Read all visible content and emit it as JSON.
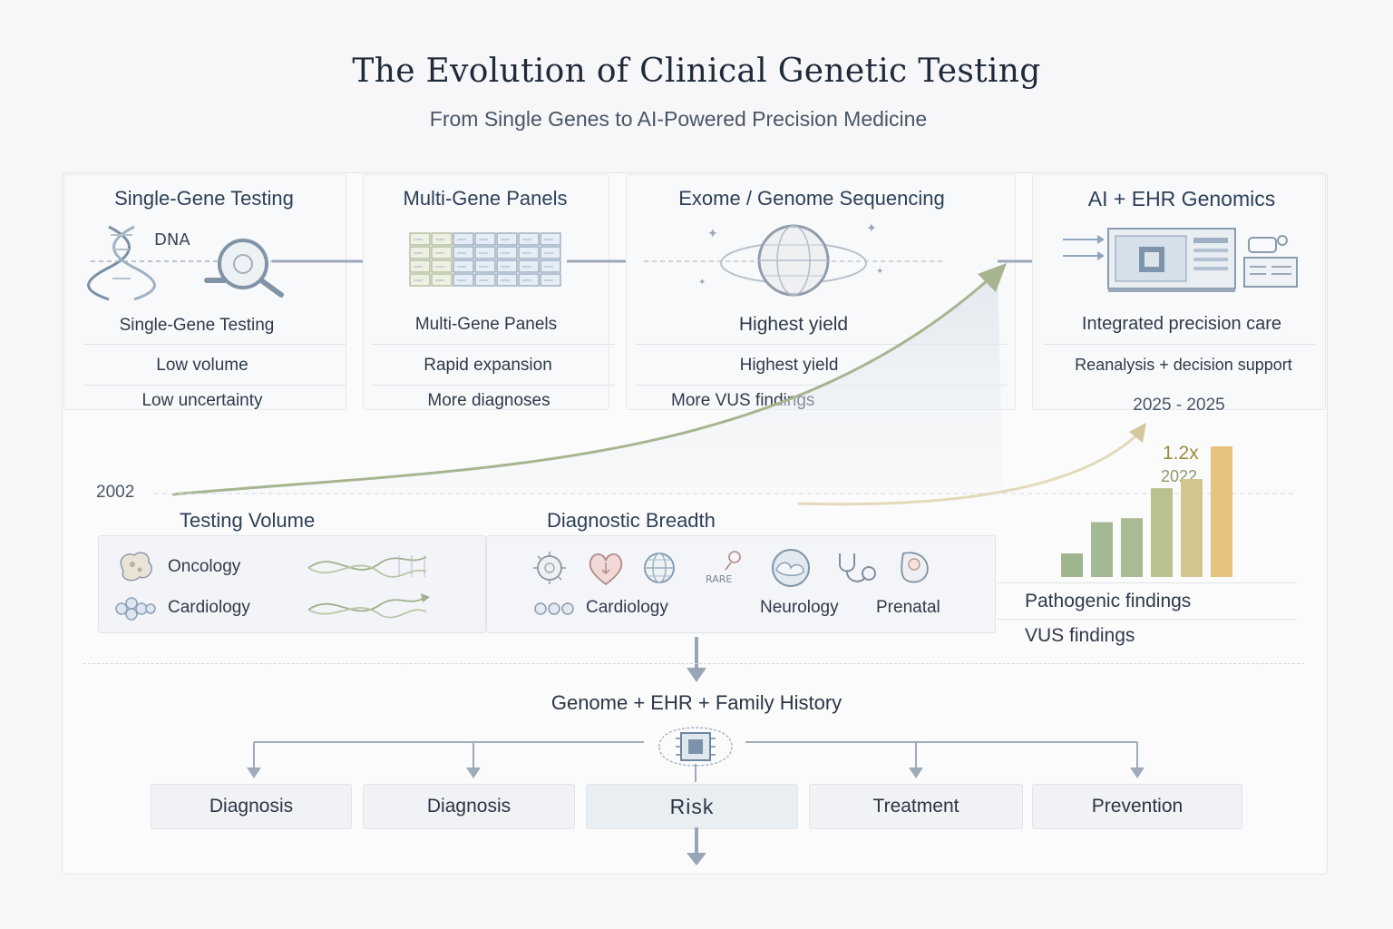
{
  "title": "The Evolution of Clinical Genetic Testing",
  "subtitle": "From Single Genes to AI-Powered Precision Medicine",
  "stages": [
    {
      "heading": "Single-Gene Testing",
      "icon_text": "DNA",
      "name": "Single-Gene Testing",
      "line1": "Low volume",
      "line2": "Low uncertainty",
      "icon": "dna-magnifier-icon"
    },
    {
      "heading": "Multi-Gene Panels",
      "name": "Multi-Gene Panels",
      "line1": "Rapid expansion",
      "line2": "More diagnoses",
      "icon": "gene-panel-grid-icon"
    },
    {
      "heading": "Exome / Genome Sequencing",
      "name": "Highest yield",
      "line1": "Highest yield",
      "line2": "More VUS findings",
      "icon": "genome-globe-icon"
    },
    {
      "heading": "AI + EHR Genomics",
      "name": "Integrated precision care",
      "line1": "Reanalysis + decision support",
      "line2": "2025 - 2025",
      "icon": "ehr-dashboard-icon"
    }
  ],
  "timeline": {
    "start_year": "2002"
  },
  "growth_chart": {
    "multiplier": "1.2x",
    "year": "2022",
    "bar_levels": [
      0.18,
      0.42,
      0.45,
      0.68,
      0.75,
      1.0
    ],
    "bar_colors": [
      "#9fb58e",
      "#a3b893",
      "#a9bb94",
      "#b9c28f",
      "#d2c590",
      "#e5c27e"
    ],
    "legend": [
      "Pathogenic findings",
      "VUS findings"
    ]
  },
  "testing_volume": {
    "title": "Testing Volume",
    "items": [
      {
        "label": "Oncology",
        "icon": "tumor-cell-icon"
      },
      {
        "label": "Cardiology",
        "icon": "cell-cluster-icon"
      }
    ]
  },
  "diagnostic_breadth": {
    "title": "Diagnostic Breadth",
    "rare_label": "RARE",
    "labels": [
      "Cardiology",
      "Neurology",
      "Prenatal"
    ],
    "icons": [
      "virus-icon",
      "heart-icon",
      "globe-icon",
      "rare-disease-icon",
      "brain-icon",
      "stethoscope-icon",
      "fetus-icon",
      "molecule-icon"
    ]
  },
  "integration": {
    "label": "Genome + EHR + Family History",
    "icon": "ai-chip-icon"
  },
  "outcomes": [
    "Diagnosis",
    "Diagnosis",
    "Risk",
    "Treatment",
    "Prevention"
  ],
  "colors": {
    "accent_arrow": "#a7b58f",
    "rule": "#dfe2e7",
    "heading": "#2e4058"
  }
}
